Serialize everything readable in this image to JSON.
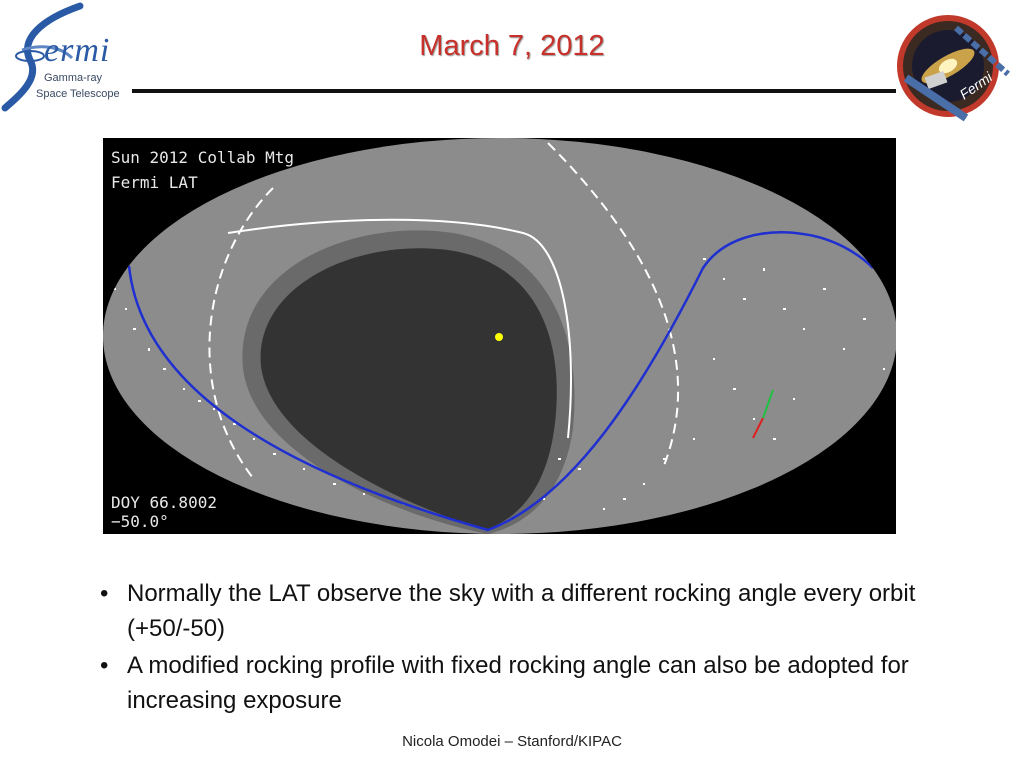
{
  "logo_left": {
    "word": "ermi",
    "line1": "Gamma-ray",
    "line2": "Space Telescope",
    "icon": "fermi-swirl-icon"
  },
  "title": "March 7, 2012",
  "logo_right": {
    "text": "Fermi",
    "icon": "fermi-mission-patch-icon"
  },
  "sky_map": {
    "label_top_1": "Sun 2012 Collab Mtg",
    "label_top_2": "Fermi LAT",
    "label_bottom_1": "DOY 66.8002",
    "label_bottom_2": "−50.0°",
    "colors": {
      "background": "#000000",
      "sky": "#8c8c8c",
      "dark_region": "#333333",
      "mid_region": "#6a6a6a",
      "track": "#1f2fd0",
      "sun": "#ffff00",
      "photons": "#ffffff"
    }
  },
  "bullets": [
    {
      "marker": "•",
      "text": "Normally the LAT observe the sky with a different rocking angle every orbit (+50/-50)"
    },
    {
      "marker": "•",
      "text": "A modified rocking profile with fixed rocking angle can also be adopted for increasing exposure"
    }
  ],
  "footer": "Nicola Omodei – Stanford/KIPAC"
}
